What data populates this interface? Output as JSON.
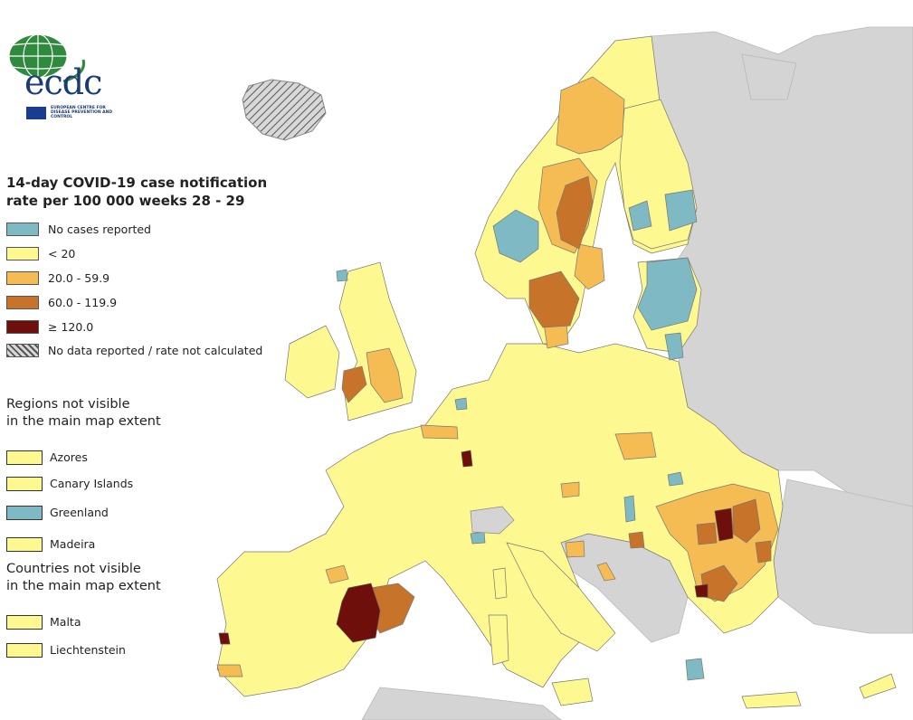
{
  "logo": {
    "text": "ecdc",
    "subtitle": "EUROPEAN CENTRE FOR DISEASE PREVENTION AND CONTROL"
  },
  "legend": {
    "title_line1": "14-day COVID-19 case notification",
    "title_line2": "rate per 100 000 weeks 28 - 29",
    "items": [
      {
        "label": "No cases reported",
        "color": "#7fb9c3"
      },
      {
        "label": "< 20",
        "color": "#fdf890"
      },
      {
        "label": "20.0 - 59.9",
        "color": "#f4bc52"
      },
      {
        "label": "60.0 - 119.9",
        "color": "#c8732a"
      },
      {
        "label": "≥ 120.0",
        "color": "#6e0f0c"
      },
      {
        "label": "No data reported / rate not calculated",
        "color": "hatch"
      }
    ]
  },
  "regions_section": {
    "title_line1": "Regions not visible",
    "title_line2": "in the main map extent",
    "items": [
      {
        "label": "Azores",
        "color": "#fdf890"
      },
      {
        "label": "Canary Islands",
        "color": "#fdf890"
      },
      {
        "label": "Greenland",
        "color": "#7fb9c3"
      },
      {
        "label": "Madeira",
        "color": "#fdf890"
      }
    ]
  },
  "countries_section": {
    "title_line1": "Countries not visible",
    "title_line2": "in the main map extent",
    "items": [
      {
        "label": "Malta",
        "color": "#fdf890"
      },
      {
        "label": "Liechtenstein",
        "color": "#fdf890"
      }
    ]
  },
  "colors": {
    "no_data_land": "#d4d4d4",
    "border": "#777777"
  }
}
